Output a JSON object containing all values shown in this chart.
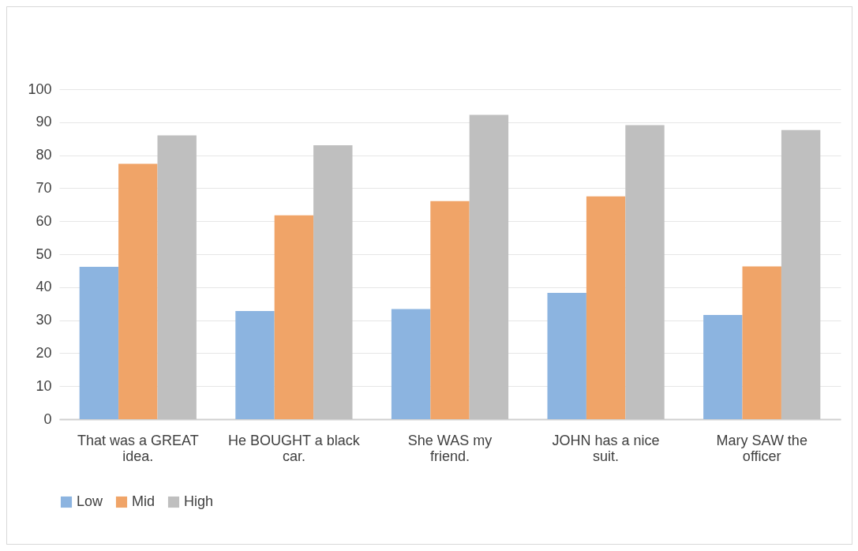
{
  "chart_data": {
    "type": "bar",
    "categories": [
      "That was a GREAT idea.",
      "He BOUGHT a black car.",
      "She WAS my friend.",
      "JOHN has a nice suit.",
      "Mary SAW the officer"
    ],
    "series": [
      {
        "name": "Low",
        "color": "#8cb4e0",
        "values": [
          46.2,
          32.8,
          33.4,
          38.3,
          31.6
        ]
      },
      {
        "name": "Mid",
        "color": "#f0a468",
        "values": [
          77.4,
          61.8,
          66.1,
          67.5,
          46.3
        ]
      },
      {
        "name": "High",
        "color": "#bfbfbf",
        "values": [
          86,
          83,
          92.2,
          89.1,
          87.6
        ]
      }
    ],
    "ylim": [
      0,
      100
    ],
    "yticks": [
      0,
      10,
      20,
      30,
      40,
      50,
      60,
      70,
      80,
      90,
      100
    ],
    "grid": "y",
    "legend": "bottom"
  }
}
